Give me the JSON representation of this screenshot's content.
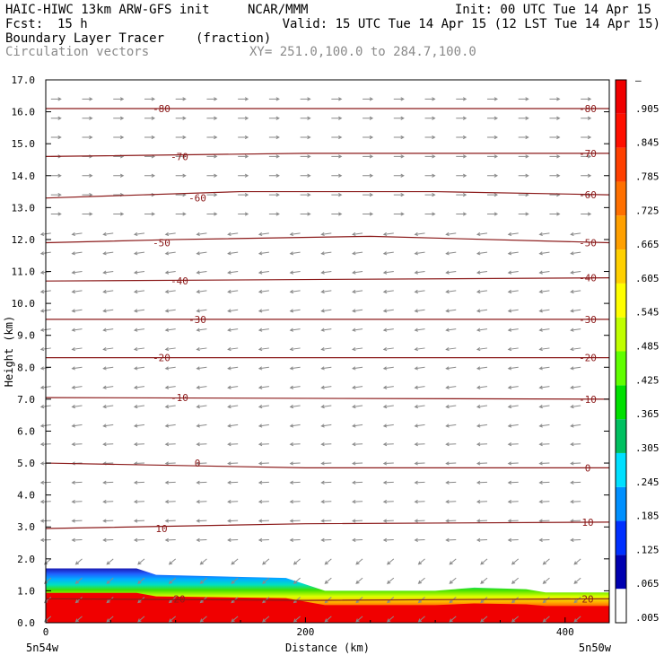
{
  "header": {
    "model": "HAIC-HIWC 13km ARW-GFS init",
    "org": "NCAR/MMM",
    "init": "Init: 00 UTC Tue 14 Apr 15",
    "fcst_label": "Fcst:",
    "fcst_value": "15 h",
    "valid": "Valid: 15 UTC Tue 14 Apr 15 (12 LST Tue 14 Apr 15)",
    "field": "Boundary Layer Tracer",
    "units": "(fraction)",
    "vectors": "Circulation vectors",
    "xy": "XY= 251.0,100.0 to 284.7,100.0"
  },
  "chart_data": {
    "type": "heatmap",
    "title": "Boundary Layer Tracer",
    "xlabel": "Distance (km)",
    "ylabel": "Height (km)",
    "xlim": [
      0,
      434
    ],
    "ylim": [
      0,
      17
    ],
    "x_ticks": [
      {
        "value": 0,
        "label": "0"
      },
      {
        "value": 200,
        "label": "200"
      },
      {
        "value": 400,
        "label": "400"
      }
    ],
    "x_end_labels": {
      "left": "5n54w",
      "right": "5n50w"
    },
    "y_ticks": [
      "0.0",
      "1.0",
      "2.0",
      "3.0",
      "4.0",
      "5.0",
      "6.0",
      "7.0",
      "8.0",
      "9.0",
      "10.0",
      "11.0",
      "12.0",
      "13.0",
      "14.0",
      "15.0",
      "16.0",
      "17.0"
    ],
    "colorbar_labels": [
      ".005",
      ".065",
      ".125",
      ".185",
      ".245",
      ".305",
      ".365",
      ".425",
      ".485",
      ".545",
      ".605",
      ".665",
      ".725",
      ".785",
      ".845",
      ".905",
      "–"
    ],
    "colorbar_colors": [
      "#ffffff",
      "#0000b0",
      "#0030ff",
      "#0090ff",
      "#00e0ff",
      "#00c060",
      "#00e000",
      "#60ff00",
      "#c0ff00",
      "#ffff00",
      "#ffd000",
      "#ffa000",
      "#ff7000",
      "#ff4000",
      "#ff1000",
      "#f00000"
    ],
    "contour_color": "#8b1a1a",
    "vector_color": "#8a8a8a",
    "temperature_contours": [
      {
        "label": "-80",
        "points": [
          [
            0,
            16.1
          ],
          [
            434,
            16.1
          ]
        ]
      },
      {
        "label": "-70",
        "points": [
          [
            0,
            14.6
          ],
          [
            200,
            14.7
          ],
          [
            434,
            14.7
          ]
        ]
      },
      {
        "label": "-60",
        "points": [
          [
            0,
            13.3
          ],
          [
            150,
            13.5
          ],
          [
            300,
            13.5
          ],
          [
            434,
            13.4
          ]
        ]
      },
      {
        "label": "-50",
        "points": [
          [
            0,
            11.9
          ],
          [
            100,
            12.0
          ],
          [
            250,
            12.1
          ],
          [
            434,
            11.9
          ]
        ]
      },
      {
        "label": "-40",
        "points": [
          [
            0,
            10.7
          ],
          [
            434,
            10.8
          ]
        ]
      },
      {
        "label": "-30",
        "points": [
          [
            0,
            9.5
          ],
          [
            434,
            9.5
          ]
        ]
      },
      {
        "label": "-20",
        "points": [
          [
            0,
            8.3
          ],
          [
            434,
            8.3
          ]
        ]
      },
      {
        "label": "-10",
        "points": [
          [
            0,
            7.05
          ],
          [
            434,
            7.0
          ]
        ]
      },
      {
        "label": "0",
        "points": [
          [
            0,
            5.0
          ],
          [
            200,
            4.85
          ],
          [
            434,
            4.85
          ]
        ]
      },
      {
        "label": "10",
        "points": [
          [
            0,
            2.95
          ],
          [
            200,
            3.1
          ],
          [
            434,
            3.15
          ]
        ]
      },
      {
        "label": "20",
        "points": [
          [
            0,
            0.75
          ],
          [
            200,
            0.7
          ],
          [
            434,
            0.75
          ]
        ]
      }
    ],
    "boundary_layer_top_km": [
      {
        "x": 0,
        "h": 1.7
      },
      {
        "x": 70,
        "h": 1.7
      },
      {
        "x": 85,
        "h": 1.5
      },
      {
        "x": 185,
        "h": 1.4
      },
      {
        "x": 215,
        "h": 1.0
      },
      {
        "x": 300,
        "h": 1.0
      },
      {
        "x": 330,
        "h": 1.1
      },
      {
        "x": 370,
        "h": 1.05
      },
      {
        "x": 385,
        "h": 0.95
      },
      {
        "x": 434,
        "h": 0.95
      }
    ]
  }
}
